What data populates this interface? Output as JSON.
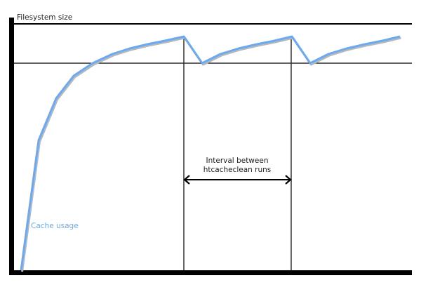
{
  "diagram": {
    "y_axis_label": "Filesystem size",
    "series_label": "Cache usage",
    "interval_label_line1": "Interval between",
    "interval_label_line2": "htcacheclean runs",
    "colors": {
      "curve": "#6aaaf5",
      "axes": "#000000",
      "shadow": "#b0b0b0"
    }
  }
}
